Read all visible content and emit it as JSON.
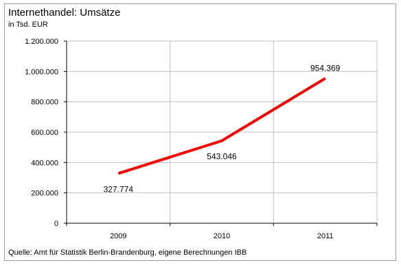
{
  "chart_data": {
    "type": "line",
    "title": "Internethandel:  Umsätze",
    "unit_label": "in Tsd. EUR",
    "categories": [
      "2009",
      "2010",
      "2011"
    ],
    "series": [
      {
        "values": [
          327774,
          543046,
          954369
        ],
        "color": "#ff0000",
        "value_labels": [
          "327.774",
          "543.046",
          "954.369"
        ]
      }
    ],
    "ylim": [
      0,
      1200000
    ],
    "yticks": [
      0,
      200000,
      400000,
      600000,
      800000,
      1000000,
      1200000
    ],
    "ytick_labels": [
      "0",
      "200.000",
      "400.000",
      "600.000",
      "800.000",
      "1.000.000",
      "1.200.000"
    ],
    "grid": true,
    "source": "Quelle: Amt für  Statistik Berlin-Brandenburg,  eigene Berechnungen  IBB"
  }
}
